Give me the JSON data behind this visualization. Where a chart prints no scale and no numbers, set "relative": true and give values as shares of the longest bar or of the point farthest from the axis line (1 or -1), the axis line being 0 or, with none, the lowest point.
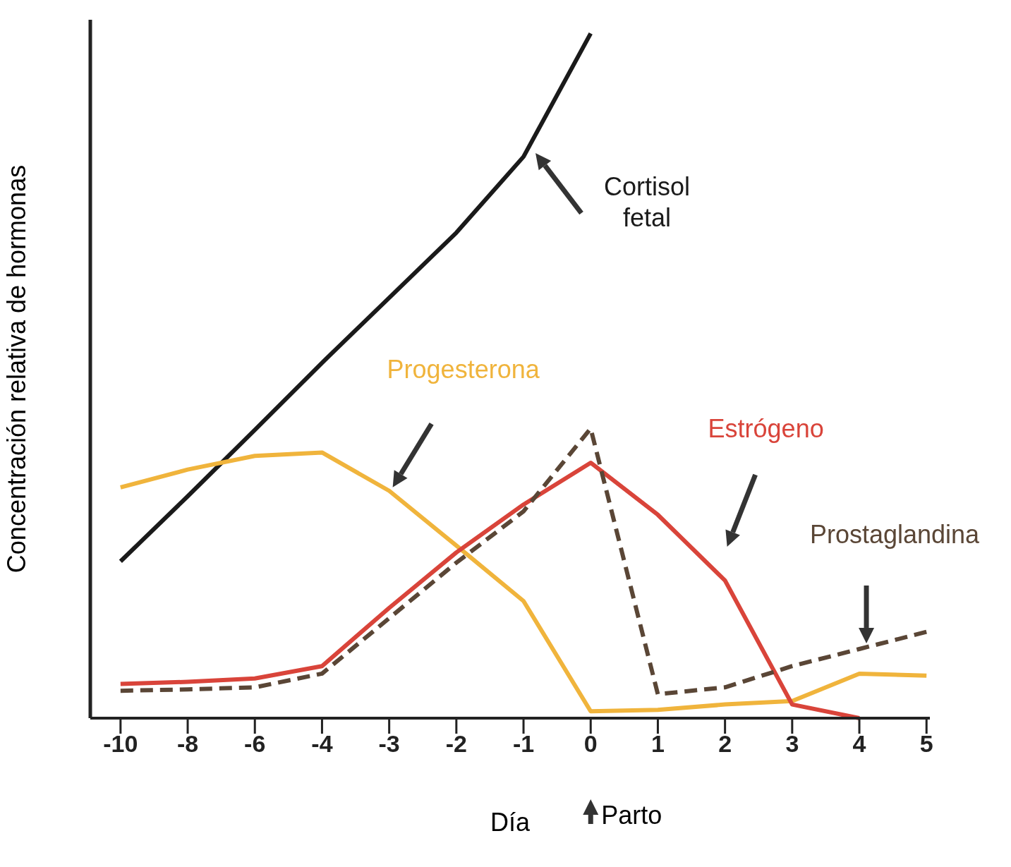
{
  "chart_data": {
    "type": "line",
    "relative": true,
    "xlabel": "Día",
    "ylabel": "Concentración relativa de hormonas",
    "categories": [
      "-10",
      "-8",
      "-6",
      "-4",
      "-3",
      "-2",
      "-1",
      "0",
      "1",
      "2",
      "3",
      "4",
      "5"
    ],
    "series": [
      {
        "name": "Cortisol fetal",
        "color": "#1a1a1a",
        "line_style": "solid",
        "values": [
          0.229,
          0.324,
          0.421,
          0.519,
          0.614,
          0.709,
          0.82,
          1,
          null,
          null,
          null,
          null,
          null
        ]
      },
      {
        "name": "Progesterona",
        "color": "#f0b43c",
        "line_style": "solid",
        "values": [
          0.337,
          0.363,
          0.383,
          0.388,
          0.332,
          0.252,
          0.171,
          0.01,
          0.012,
          0.02,
          0.025,
          0.065,
          0.062
        ]
      },
      {
        "name": "Estrógeno",
        "color": "#d9443a",
        "line_style": "solid",
        "values": [
          0.05,
          0.053,
          0.058,
          0.076,
          0.161,
          0.242,
          0.312,
          0.373,
          0.297,
          0.201,
          0.02,
          0,
          null
        ]
      },
      {
        "name": "Prostaglandina",
        "color": "#5a4636",
        "line_style": "dashed",
        "values": [
          0.04,
          0.042,
          0.045,
          0.065,
          0.146,
          0.227,
          0.302,
          0.423,
          0.035,
          0.045,
          0.076,
          0.101,
          0.126
        ]
      }
    ],
    "annotations": [
      "Parto"
    ],
    "legend": false,
    "grid": false,
    "marker": "none"
  }
}
